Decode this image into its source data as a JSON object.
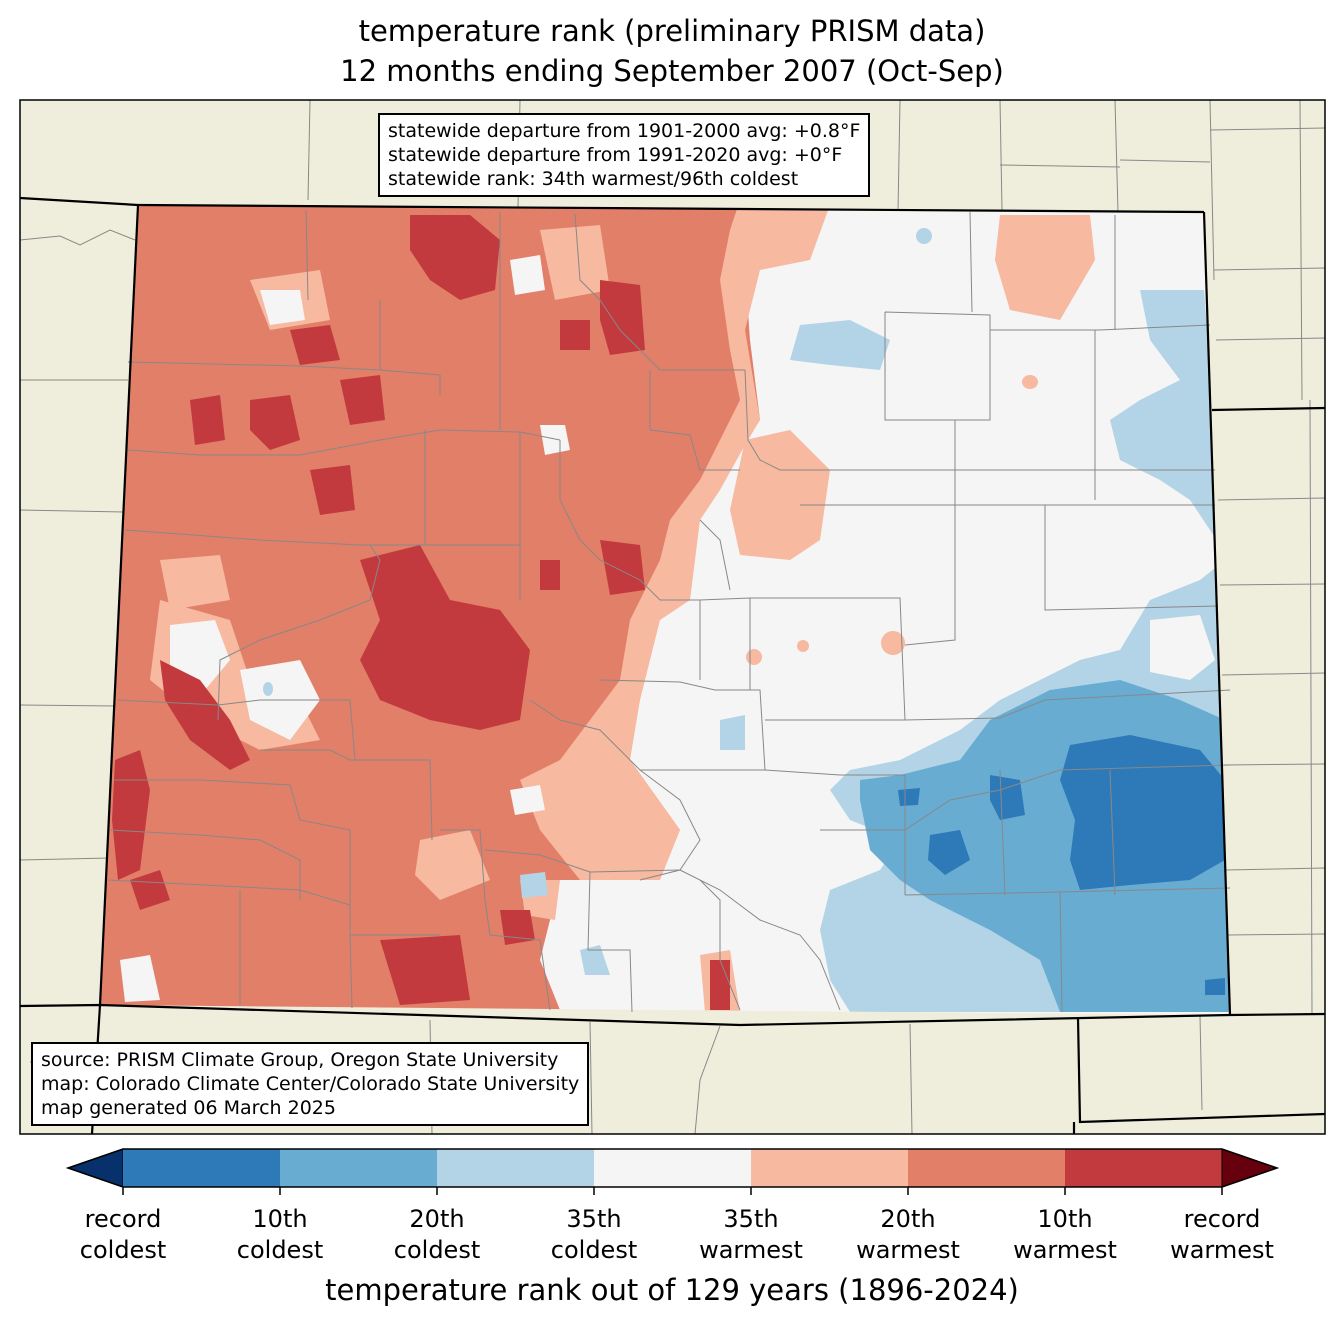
{
  "title": {
    "line1": "temperature rank (preliminary PRISM data)",
    "line2": "12 months ending September 2007 (Oct-Sep)"
  },
  "stats": {
    "line1": "statewide departure from 1901-2000 avg: +0.8°F",
    "line2": "statewide departure from 1991-2020 avg: +0°F",
    "line3": "statewide rank: 34th warmest/96th coldest"
  },
  "source": {
    "line1": "source: PRISM Climate Group, Oregon State University",
    "line2": "map: Colorado Climate Center/Colorado State University",
    "line3": "map generated 06 March 2025"
  },
  "colorbar": {
    "title": "temperature rank out of 129 years (1896-2024)",
    "ticks": [
      {
        "line1": "record",
        "line2": "coldest"
      },
      {
        "line1": "10th",
        "line2": "coldest"
      },
      {
        "line1": "20th",
        "line2": "coldest"
      },
      {
        "line1": "35th",
        "line2": "coldest"
      },
      {
        "line1": "35th",
        "line2": "warmest"
      },
      {
        "line1": "20th",
        "line2": "warmest"
      },
      {
        "line1": "10th",
        "line2": "warmest"
      },
      {
        "line1": "record",
        "line2": "warmest"
      }
    ],
    "colors": {
      "below_record_cold": "#08306b",
      "record_to_10th_cold": "#2e7ab8",
      "10th_to_20th_cold": "#69acd2",
      "20th_to_35th_cold": "#b3d4e6",
      "near_normal": "#f5f5f5",
      "35th_to_20th_warm": "#f7b9a0",
      "20th_to_10th_warm": "#e27f68",
      "10th_to_record_warm": "#c23a3d",
      "above_record_warm": "#67000d"
    }
  },
  "map_colors": {
    "land_background": "#efeedc",
    "county_lines": "#888888",
    "state_lines": "#000000"
  }
}
